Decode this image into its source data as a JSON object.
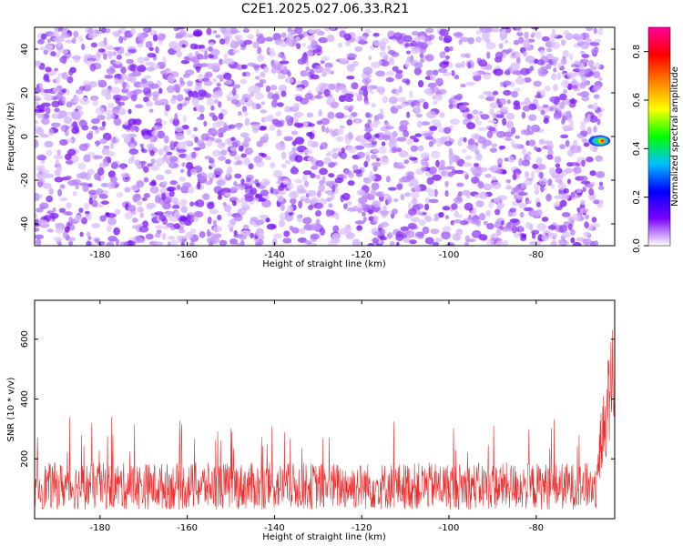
{
  "title": "C2E1.2025.027.06.33.R21",
  "chart_data": [
    {
      "type": "heatmap",
      "xlabel": "Height of straight line (km)",
      "ylabel": "Frequency (Hz)",
      "xlim": [
        -195,
        -62
      ],
      "ylim": [
        -50,
        50
      ],
      "xticks": [
        -180,
        -160,
        -140,
        -120,
        -100,
        -80
      ],
      "yticks": [
        -40,
        -20,
        0,
        20,
        40
      ],
      "colorbar": {
        "label": "Normalized spectral amplitude",
        "range": [
          0.0,
          0.9
        ],
        "ticks": [
          0.0,
          0.2,
          0.4,
          0.6,
          0.8
        ],
        "colors": [
          "#ffffff",
          "#7a00ff",
          "#0000ff",
          "#00bfff",
          "#00ff00",
          "#ffff00",
          "#ff8000",
          "#ff0000",
          "#ff00a0"
        ]
      },
      "noise_amplitude_range": [
        0.02,
        0.25
      ],
      "signal_feature": {
        "x_range": [
          -67,
          -64
        ],
        "frequency_hz": -2,
        "peak_amplitude": 0.75
      }
    },
    {
      "type": "line",
      "xlabel": "Height of straight line (km)",
      "ylabel": "SNR (10 * v/v)",
      "xlim": [
        -195,
        -62
      ],
      "ylim": [
        0,
        730
      ],
      "xticks": [
        -180,
        -160,
        -140,
        -120,
        -100,
        -80
      ],
      "yticks": [
        200,
        400,
        600
      ],
      "series_color": "#ee2c2c",
      "noise_floor_range": [
        30,
        240
      ],
      "occasional_spike_max": 340,
      "rise_start_x": -66,
      "end_level_range": [
        300,
        730
      ]
    }
  ]
}
